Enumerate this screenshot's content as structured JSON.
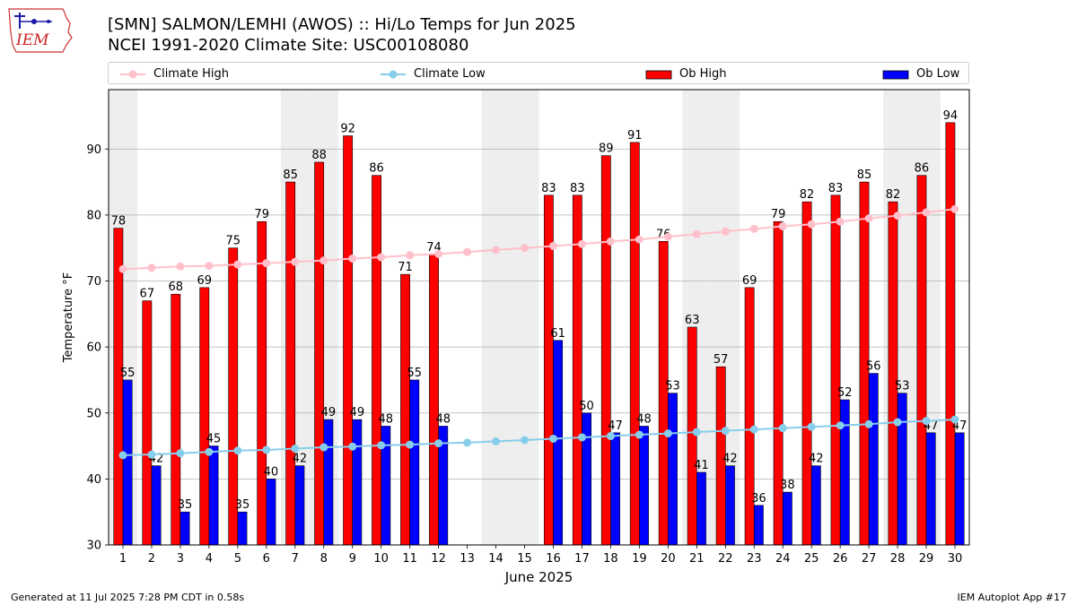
{
  "header": {
    "logo_text": "IEM",
    "title_line1": "[SMN] SALMON/LEMHI (AWOS) :: Hi/Lo Temps for Jun 2025",
    "title_line2": "NCEI 1991-2020 Climate Site: USC00108080"
  },
  "legend": {
    "items": [
      {
        "label": "Climate High",
        "kind": "line",
        "color": "#ffc0cb"
      },
      {
        "label": "Climate Low",
        "kind": "line",
        "color": "#87ceeb"
      },
      {
        "label": "Ob High",
        "kind": "bar",
        "color": "#ff0000"
      },
      {
        "label": "Ob Low",
        "kind": "bar",
        "color": "#0000ff"
      }
    ]
  },
  "footer": {
    "left": "Generated at 11 Jul 2025 7:28 PM CDT in 0.58s",
    "right": "IEM Autoplot App #17"
  },
  "chart_data": {
    "type": "bar",
    "xlabel": "June 2025",
    "ylabel": "Temperature °F",
    "ylim": [
      30,
      99
    ],
    "yticks": [
      30,
      40,
      50,
      60,
      70,
      80,
      90
    ],
    "grid": "horizontal",
    "legend_position": "top",
    "categories": [
      1,
      2,
      3,
      4,
      5,
      6,
      7,
      8,
      9,
      10,
      11,
      12,
      13,
      14,
      15,
      16,
      17,
      18,
      19,
      20,
      21,
      22,
      23,
      24,
      25,
      26,
      27,
      28,
      29,
      30
    ],
    "shaded_weekends": [
      1,
      7,
      8,
      14,
      15,
      21,
      22,
      28,
      29
    ],
    "colors": {
      "ob_high": "#ff0000",
      "ob_low": "#0000ff",
      "climate_high": "#ffc0cb",
      "climate_low": "#87ceeb",
      "weekend_shade": "#eeeeee",
      "grid": "#b0b0b0"
    },
    "series": [
      {
        "name": "Ob High",
        "kind": "bar",
        "values": [
          78,
          67,
          68,
          69,
          75,
          79,
          85,
          88,
          92,
          86,
          71,
          74,
          null,
          null,
          null,
          83,
          83,
          89,
          91,
          76,
          63,
          57,
          69,
          79,
          82,
          83,
          85,
          82,
          86,
          94
        ]
      },
      {
        "name": "Ob Low",
        "kind": "bar",
        "values": [
          55,
          42,
          35,
          45,
          35,
          40,
          42,
          49,
          49,
          48,
          55,
          48,
          null,
          null,
          null,
          61,
          50,
          47,
          48,
          53,
          41,
          42,
          36,
          38,
          42,
          52,
          56,
          53,
          47,
          47
        ]
      },
      {
        "name": "Climate High",
        "kind": "line",
        "values": [
          71.8,
          72.0,
          72.2,
          72.3,
          72.5,
          72.7,
          72.9,
          73.1,
          73.4,
          73.6,
          73.9,
          74.1,
          74.4,
          74.7,
          75.0,
          75.3,
          75.6,
          76.0,
          76.3,
          76.7,
          77.1,
          77.5,
          77.9,
          78.3,
          78.6,
          79.0,
          79.5,
          79.9,
          80.4,
          80.9
        ]
      },
      {
        "name": "Climate Low",
        "kind": "line",
        "values": [
          43.6,
          43.7,
          43.9,
          44.1,
          44.3,
          44.4,
          44.6,
          44.8,
          44.9,
          45.1,
          45.2,
          45.4,
          45.5,
          45.7,
          45.9,
          46.1,
          46.3,
          46.5,
          46.7,
          46.9,
          47.1,
          47.3,
          47.5,
          47.7,
          47.9,
          48.1,
          48.3,
          48.6,
          48.8,
          49.0
        ]
      }
    ]
  }
}
